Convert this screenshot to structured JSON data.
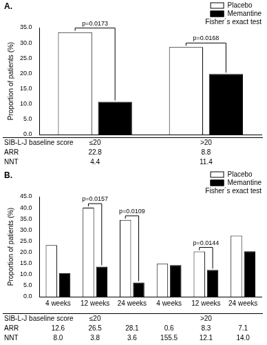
{
  "chart_data": [
    {
      "type": "bar",
      "title": "A.",
      "y_label": "Proportion of patients (%)",
      "categories": [
        "≤20",
        ">20"
      ],
      "series": [
        {
          "name": "Placebo",
          "color": "#ffffff",
          "values": [
            33.5,
            28.6
          ]
        },
        {
          "name": "Memantine",
          "color": "#000000",
          "values": [
            10.7,
            19.8
          ]
        }
      ],
      "ylim": [
        0,
        35
      ],
      "yticks": [
        {
          "value": 0,
          "label": "0.0"
        },
        {
          "value": 5,
          "label": "5.0"
        },
        {
          "value": 10,
          "label": "10.0"
        },
        {
          "value": 15,
          "label": "15.0"
        },
        {
          "value": 20,
          "label": "20.0"
        },
        {
          "value": 25,
          "label": "25.0"
        },
        {
          "value": 30,
          "label": "30.0"
        },
        {
          "value": 35,
          "label": "35.0"
        }
      ],
      "grid": false,
      "legend": "upper right",
      "legend_note": "Fisher´s exact test",
      "tick_labels": "y",
      "annotations": [
        {
          "text": "p=0.0173",
          "category_index": 0
        },
        {
          "text": "p=0.0168",
          "category_index": 1
        }
      ],
      "table": {
        "header": "SIB-L-J baseline score",
        "rows": [
          {
            "label": "ARR",
            "values": [
              "22.8",
              "8.8"
            ]
          },
          {
            "label": "NNT",
            "values": [
              "4.4",
              "11.4"
            ]
          }
        ]
      }
    },
    {
      "type": "bar",
      "title": "B.",
      "y_label": "Proportion of patients (%)",
      "categories": [
        "4 weeks",
        "12 weeks",
        "24 weeks",
        "4 weeks",
        "12 weeks",
        "24 weeks"
      ],
      "series": [
        {
          "name": "Placebo",
          "color": "#ffffff",
          "values": [
            23.2,
            40.0,
            34.5,
            14.8,
            20.3,
            27.5
          ]
        },
        {
          "name": "Memantine",
          "color": "#000000",
          "values": [
            10.6,
            13.5,
            6.4,
            14.2,
            12.0,
            20.4
          ]
        }
      ],
      "ylim": [
        0,
        45
      ],
      "yticks": [
        {
          "value": 0,
          "label": "0.0"
        },
        {
          "value": 5,
          "label": "5.0"
        },
        {
          "value": 10,
          "label": "10.0"
        },
        {
          "value": 15,
          "label": "15.0"
        },
        {
          "value": 20,
          "label": "20.0"
        },
        {
          "value": 25,
          "label": "25.0"
        },
        {
          "value": 30,
          "label": "30.0"
        },
        {
          "value": 35,
          "label": "35.0"
        },
        {
          "value": 40,
          "label": "40.0"
        },
        {
          "value": 45,
          "label": "45.0"
        }
      ],
      "grid": false,
      "legend": "upper right",
      "legend_note": "Fisher´s exact test",
      "annotations": [
        {
          "text": "p=0.0157",
          "category_index": 1
        },
        {
          "text": "p=0.0109",
          "category_index": 2
        },
        {
          "text": "p=0.0144",
          "category_index": 4
        }
      ],
      "table": {
        "header": "SIB-L-J baseline score",
        "groups": [
          "≤20",
          ">20"
        ],
        "rows": [
          {
            "label": "ARR",
            "values": [
              "12.6",
              "26.5",
              "28.1",
              "0.6",
              "8.3",
              "7.1"
            ]
          },
          {
            "label": "NNT",
            "values": [
              "8.0",
              "3.8",
              "3.6",
              "155.5",
              "12.1",
              "14.0"
            ]
          }
        ]
      }
    }
  ]
}
